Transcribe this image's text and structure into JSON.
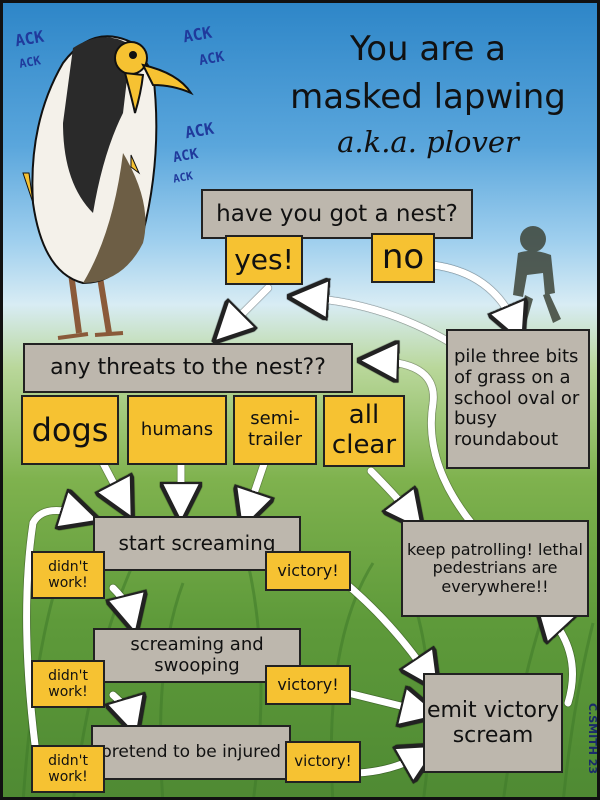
{
  "title": {
    "line1": "You are a",
    "line2": "masked lapwing",
    "line3": "a.k.a. plover"
  },
  "ack_texts": [
    "ACK",
    "ACK",
    "ACK",
    "ACK",
    "ACK",
    "ACK",
    "ACK"
  ],
  "nodes": {
    "have_nest": "have you got a nest?",
    "yes": "yes!",
    "no": "no",
    "pile_grass": "pile three bits of grass on a school oval or busy roundabout",
    "any_threats": "any threats to the nest??",
    "dogs": "dogs",
    "humans": "humans",
    "semitrailer": "semi-trailer",
    "all_clear": "all clear",
    "keep_patrolling": "keep patrolling! lethal pedestrians are everywhere!!",
    "start_screaming": "start screaming",
    "screaming_swooping": "screaming and swooping",
    "pretend_injured": "pretend to be injured",
    "emit_victory": "emit victory scream",
    "didnt_work_1": "didn't work!",
    "didnt_work_2": "didn't work!",
    "didnt_work_3": "didn't work!",
    "victory_1": "victory!",
    "victory_2": "victory!",
    "victory_3": "victory!"
  },
  "signature": "C.SMITH 23",
  "colors": {
    "box_grey": "#bdb7ad",
    "box_yellow": "#f6c232",
    "ack_blue": "#203a9c"
  }
}
